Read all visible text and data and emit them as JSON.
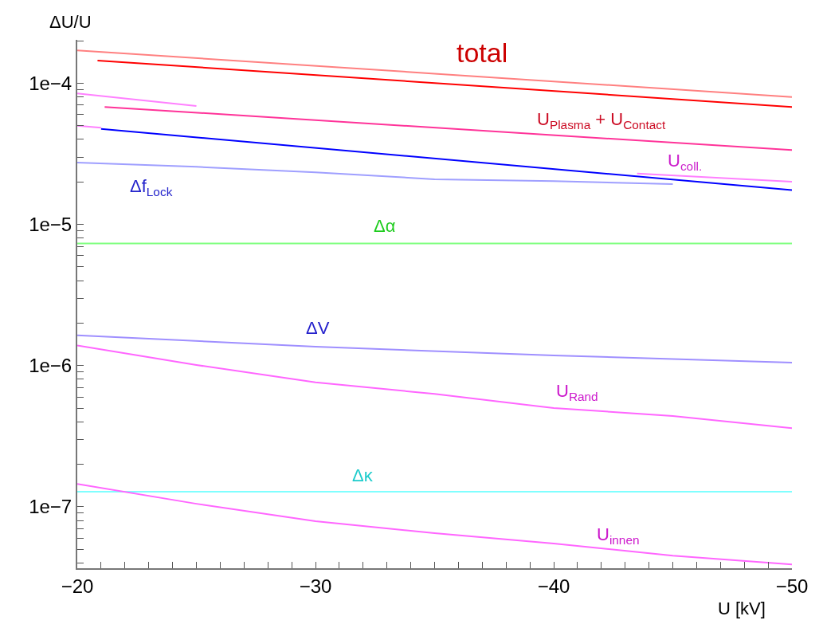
{
  "chart_data": {
    "type": "line",
    "xlabel": "U [kV]",
    "ylabel": "ΔU/U",
    "log": "y",
    "legend": false,
    "marker": "none",
    "line_style": "solid",
    "xlim": [
      -20,
      -50
    ],
    "ylim": [
      3.67e-08,
      0.000203
    ],
    "xticks": [
      -20,
      {
        "value": -21,
        "label": null
      },
      {
        "value": -22,
        "label": null
      },
      {
        "value": -23,
        "label": null
      },
      {
        "value": -24,
        "label": null
      },
      {
        "value": -25,
        "label": null
      },
      {
        "value": -26,
        "label": null
      },
      {
        "value": -27,
        "label": null
      },
      {
        "value": -28,
        "label": null
      },
      {
        "value": -29,
        "label": null
      },
      -30,
      {
        "value": -31,
        "label": null
      },
      {
        "value": -32,
        "label": null
      },
      {
        "value": -33,
        "label": null
      },
      {
        "value": -34,
        "label": null
      },
      {
        "value": -35,
        "label": null
      },
      {
        "value": -36,
        "label": null
      },
      {
        "value": -37,
        "label": null
      },
      {
        "value": -38,
        "label": null
      },
      {
        "value": -39,
        "label": null
      },
      -40,
      {
        "value": -41,
        "label": null
      },
      {
        "value": -42,
        "label": null
      },
      {
        "value": -43,
        "label": null
      },
      {
        "value": -44,
        "label": null
      },
      {
        "value": -45,
        "label": null
      },
      {
        "value": -46,
        "label": null
      },
      {
        "value": -47,
        "label": null
      },
      {
        "value": -48,
        "label": null
      },
      {
        "value": -49,
        "label": null
      },
      -50
    ],
    "yticks": [
      {
        "value": 4e-08,
        "label": null
      },
      {
        "value": 5e-08,
        "label": null
      },
      {
        "value": 6e-08,
        "label": null
      },
      {
        "value": 7e-08,
        "label": null
      },
      {
        "value": 8e-08,
        "label": null
      },
      {
        "value": 9e-08,
        "label": null
      },
      {
        "value": 1e-07,
        "label": "1e−7"
      },
      {
        "value": 2e-07,
        "label": null
      },
      {
        "value": 3e-07,
        "label": null
      },
      {
        "value": 4e-07,
        "label": null
      },
      {
        "value": 5e-07,
        "label": null
      },
      {
        "value": 6e-07,
        "label": null
      },
      {
        "value": 7e-07,
        "label": null
      },
      {
        "value": 8e-07,
        "label": null
      },
      {
        "value": 9e-07,
        "label": null
      },
      {
        "value": 1e-06,
        "label": "1e−6"
      },
      {
        "value": 2e-06,
        "label": null
      },
      {
        "value": 3e-06,
        "label": null
      },
      {
        "value": 4e-06,
        "label": null
      },
      {
        "value": 5e-06,
        "label": null
      },
      {
        "value": 6e-06,
        "label": null
      },
      {
        "value": 7e-06,
        "label": null
      },
      {
        "value": 8e-06,
        "label": null
      },
      {
        "value": 9e-06,
        "label": null
      },
      {
        "value": 1e-05,
        "label": "1e−5"
      },
      {
        "value": 2e-05,
        "label": null
      },
      {
        "value": 3e-05,
        "label": null
      },
      {
        "value": 4e-05,
        "label": null
      },
      {
        "value": 5e-05,
        "label": null
      },
      {
        "value": 6e-05,
        "label": null
      },
      {
        "value": 7e-05,
        "label": null
      },
      {
        "value": 8e-05,
        "label": null
      },
      {
        "value": 9e-05,
        "label": null
      },
      {
        "value": 0.0001,
        "label": "1e−4"
      },
      {
        "value": 0.0002,
        "label": null
      }
    ],
    "series": [
      {
        "color": "#ff8080",
        "x": [
          -20,
          -35,
          -50
        ],
        "values": [
          0.000171,
          0.000117,
          8e-05
        ]
      },
      {
        "color": "#ff80ff",
        "x": [
          -20,
          -25
        ],
        "values": [
          8.46e-05,
          6.9e-05
        ]
      },
      {
        "name": "U$_{coll.}$",
        "color": "#ff80ff",
        "x": [
          -20,
          -21,
          -35,
          -43.5,
          -50
        ],
        "values": [
          5e-05,
          4.85e-05,
          null,
          2.29e-05,
          2.01e-05
        ]
      },
      {
        "name": "Δf$_{Lock}$",
        "color": "#9f9fff",
        "x": [
          -20,
          -25,
          -30,
          -35,
          -40,
          -45
        ],
        "values": [
          2.74e-05,
          2.56e-05,
          2.34e-05,
          2.09e-05,
          2.03e-05,
          1.93e-05
        ]
      },
      {
        "name": "Δα",
        "color": "#80ff80",
        "x": [
          -20,
          -50
        ],
        "values": [
          7.34e-06,
          7.34e-06
        ]
      },
      {
        "name": "ΔV",
        "color": "#9f8fff",
        "x": [
          -20,
          -30,
          -40,
          -50
        ],
        "values": [
          1.64e-06,
          1.36e-06,
          1.18e-06,
          1.05e-06
        ]
      },
      {
        "name": "U$_{Rand}$",
        "color": "#ff66ff",
        "x": [
          -20,
          -25,
          -30,
          -35,
          -40,
          -45,
          -50
        ],
        "values": [
          1.39e-06,
          1.01e-06,
          7.6e-07,
          6.3e-07,
          5e-07,
          4.4e-07,
          3.6e-07
        ]
      },
      {
        "name": "Δκ",
        "color": "#80ffff",
        "x": [
          -20,
          -50
        ],
        "values": [
          1.28e-07,
          1.28e-07
        ]
      },
      {
        "name": "U$_{innen}$",
        "color": "#ff66ff",
        "x": [
          -20,
          -25,
          -30,
          -35,
          -40,
          -45,
          -50
        ],
        "values": [
          1.45e-07,
          1.05e-07,
          7.9e-08,
          6.5e-08,
          5.5e-08,
          4.5e-08,
          3.9e-08
        ]
      },
      {
        "name": "total",
        "color": "#ff0000",
        "x": [
          -20.85,
          -50
        ],
        "values": [
          0.000145,
          6.8e-05
        ]
      },
      {
        "name": "U$_{Plasma}$ + U$_{Contact}$",
        "color": "#ff3399",
        "x": [
          -21.15,
          -50
        ],
        "values": [
          6.8e-05,
          3.36e-05
        ]
      },
      {
        "color": "#0000ff",
        "x": [
          -21,
          -50
        ],
        "values": [
          4.75e-05,
          1.75e-05
        ]
      }
    ]
  }
}
